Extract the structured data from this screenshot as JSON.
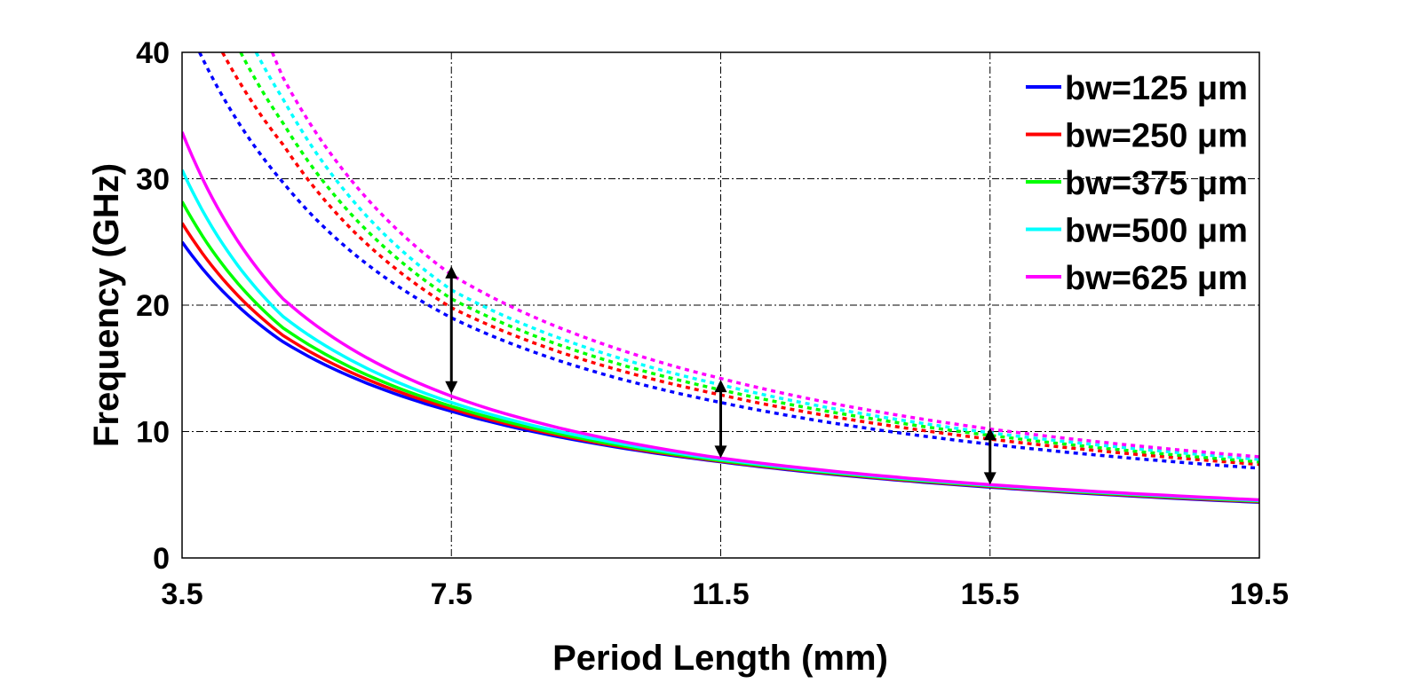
{
  "chart_data": {
    "type": "line",
    "title": "",
    "xlabel": "Period Length (mm)",
    "ylabel": "Frequency (GHz)",
    "xlim": [
      3.5,
      19.5
    ],
    "ylim": [
      0,
      40
    ],
    "xticks": [
      3.5,
      7.5,
      11.5,
      15.5,
      19.5
    ],
    "xtick_labels": [
      "3.5",
      "7.5",
      "11.5",
      "15.5",
      "19.5"
    ],
    "yticks": [
      0,
      10,
      20,
      30,
      40
    ],
    "ytick_labels": [
      "0",
      "10",
      "20",
      "30",
      "40"
    ],
    "grid": "on (dash-dot)",
    "legend_position": "top-right",
    "series": [
      {
        "name": "bw=125 μm",
        "color": "#0000ff",
        "style": "solid",
        "x": [
          3.5,
          5,
          7.5,
          11.5,
          15.5,
          19.5
        ],
        "y": [
          25.0,
          17.1,
          11.6,
          7.6,
          5.6,
          4.4
        ]
      },
      {
        "name": "bw=250 μm",
        "color": "#ff0000",
        "style": "solid",
        "x": [
          3.5,
          5,
          7.5,
          11.5,
          15.5,
          19.5
        ],
        "y": [
          26.5,
          17.6,
          11.8,
          7.65,
          5.65,
          4.45
        ]
      },
      {
        "name": "bw=375 μm",
        "color": "#00ff00",
        "style": "solid",
        "x": [
          3.5,
          5,
          7.5,
          11.5,
          15.5,
          19.5
        ],
        "y": [
          28.2,
          18.2,
          12.0,
          7.7,
          5.7,
          4.5
        ]
      },
      {
        "name": "bw=500 μm",
        "color": "#00ffff",
        "style": "solid",
        "x": [
          3.5,
          5,
          7.5,
          11.5,
          15.5,
          19.5
        ],
        "y": [
          30.7,
          19.1,
          12.3,
          7.8,
          5.75,
          4.55
        ]
      },
      {
        "name": "bw=625 μm",
        "color": "#ff00ff",
        "style": "solid",
        "x": [
          3.5,
          5,
          7.5,
          11.5,
          15.5,
          19.5
        ],
        "y": [
          33.7,
          20.5,
          12.8,
          7.9,
          5.8,
          4.6
        ]
      },
      {
        "color": "#0000ff",
        "style": "dotted",
        "x": [
          3.76,
          5,
          7.5,
          11.5,
          15.5,
          19.5
        ],
        "y": [
          40,
          29.7,
          19.0,
          12.3,
          9.0,
          7.1
        ]
      },
      {
        "color": "#ff0000",
        "style": "dotted",
        "x": [
          4.1,
          5,
          7.5,
          11.5,
          15.5,
          19.5
        ],
        "y": [
          40,
          32.7,
          19.8,
          12.9,
          9.4,
          7.4
        ]
      },
      {
        "color": "#00ff00",
        "style": "dotted",
        "x": [
          4.37,
          5,
          7.5,
          11.5,
          15.5,
          19.5
        ],
        "y": [
          40,
          34.4,
          20.5,
          13.3,
          9.7,
          7.6
        ]
      },
      {
        "color": "#00ffff",
        "style": "dotted",
        "x": [
          4.6,
          5,
          7.5,
          11.5,
          15.5,
          19.5
        ],
        "y": [
          40,
          36.3,
          21.2,
          13.7,
          9.9,
          7.8
        ]
      },
      {
        "color": "#ff00ff",
        "style": "dotted",
        "x": [
          4.84,
          5,
          7.5,
          11.5,
          15.5,
          19.5
        ],
        "y": [
          40,
          38.0,
          22.4,
          14.2,
          10.2,
          8.0
        ]
      }
    ],
    "annotations": [
      {
        "type": "double-arrow",
        "x": 7.5,
        "y_from": 13.0,
        "y_to": 23.1
      },
      {
        "type": "double-arrow",
        "x": 11.5,
        "y_from": 7.9,
        "y_to": 14.1
      },
      {
        "type": "double-arrow",
        "x": 15.5,
        "y_from": 5.8,
        "y_to": 10.3
      }
    ]
  }
}
